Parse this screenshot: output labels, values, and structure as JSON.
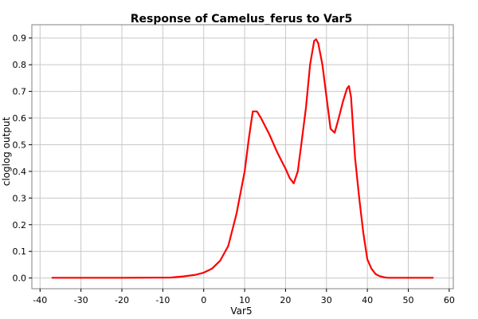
{
  "chart_data": {
    "type": "line",
    "title": "Response of Camelus_ferus to Var5",
    "xlabel": "Var5",
    "ylabel": "cloglog output",
    "xlim": [
      -42,
      61
    ],
    "ylim": [
      -0.04,
      0.95
    ],
    "xticks": [
      -40,
      -30,
      -20,
      -10,
      0,
      10,
      20,
      30,
      40,
      50,
      60
    ],
    "xtick_labels": [
      "-40",
      "-30",
      "-20",
      "-10",
      "0",
      "10",
      "20",
      "30",
      "40",
      "50",
      "60"
    ],
    "yticks": [
      0.0,
      0.1,
      0.2,
      0.3,
      0.4,
      0.5,
      0.6,
      0.7,
      0.8,
      0.9
    ],
    "ytick_labels": [
      "0.0",
      "0.1",
      "0.2",
      "0.3",
      "0.4",
      "0.5",
      "0.6",
      "0.7",
      "0.8",
      "0.9"
    ],
    "grid": true,
    "series": [
      {
        "name": "response",
        "color": "#ff0000",
        "x": [
          -37,
          -20,
          -8,
          -5,
          -2,
          0,
          2,
          4,
          6,
          8,
          10,
          11,
          12,
          13,
          14,
          16,
          18,
          20,
          21,
          22,
          23,
          24,
          25,
          26,
          27,
          27.5,
          28,
          29,
          30,
          31,
          32,
          33,
          34,
          35,
          35.5,
          36,
          37,
          38,
          39,
          40,
          41,
          42,
          43,
          44,
          45,
          50,
          56
        ],
        "y": [
          0.001,
          0.001,
          0.002,
          0.006,
          0.012,
          0.02,
          0.035,
          0.065,
          0.12,
          0.24,
          0.4,
          0.52,
          0.625,
          0.625,
          0.6,
          0.54,
          0.47,
          0.41,
          0.375,
          0.355,
          0.4,
          0.52,
          0.64,
          0.8,
          0.89,
          0.895,
          0.88,
          0.8,
          0.68,
          0.56,
          0.545,
          0.6,
          0.66,
          0.71,
          0.72,
          0.68,
          0.45,
          0.3,
          0.17,
          0.07,
          0.035,
          0.015,
          0.007,
          0.003,
          0.001,
          0.001,
          0.001
        ]
      }
    ]
  }
}
